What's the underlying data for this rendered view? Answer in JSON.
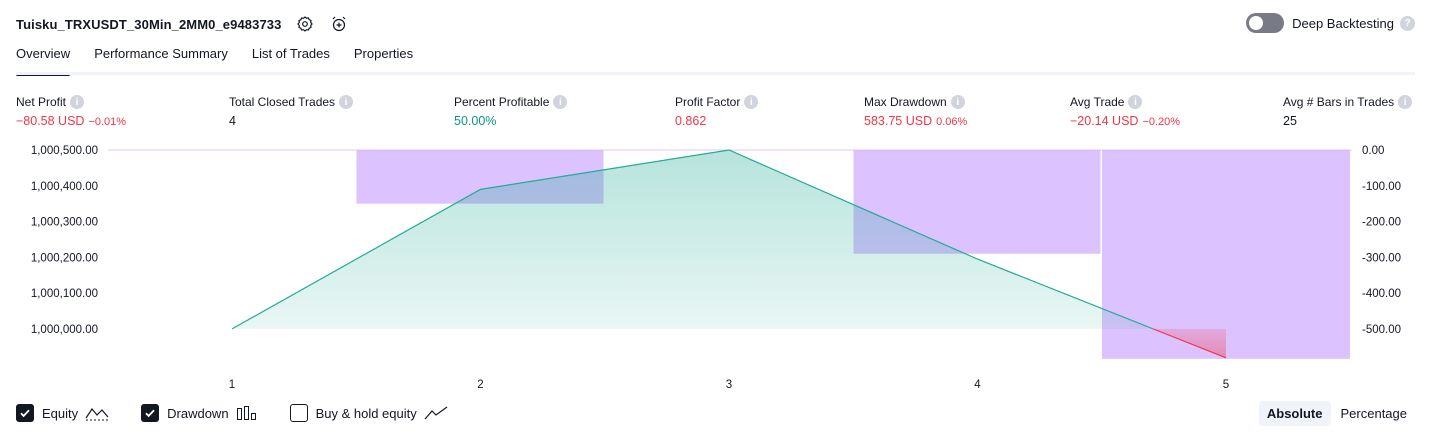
{
  "header": {
    "title": "Tuisku_TRXUSDT_30Min_2MM0_e9483733",
    "deep_backtesting_label": "Deep Backtesting",
    "deep_backtesting_on": false
  },
  "tabs": [
    {
      "label": "Overview",
      "active": true
    },
    {
      "label": "Performance Summary",
      "active": false
    },
    {
      "label": "List of Trades",
      "active": false
    },
    {
      "label": "Properties",
      "active": false
    }
  ],
  "stats": [
    {
      "label": "Net Profit",
      "value": "−80.58 USD",
      "pct": "−0.01%",
      "tone": "neg"
    },
    {
      "label": "Total Closed Trades",
      "value": "4",
      "pct": "",
      "tone": "neu"
    },
    {
      "label": "Percent Profitable",
      "value": "50.00%",
      "pct": "",
      "tone": "pos"
    },
    {
      "label": "Profit Factor",
      "value": "0.862",
      "pct": "",
      "tone": "neg"
    },
    {
      "label": "Max Drawdown",
      "value": "583.75 USD",
      "pct": "0.06%",
      "tone": "neg"
    },
    {
      "label": "Avg Trade",
      "value": "−20.14 USD",
      "pct": "−0.20%",
      "tone": "neg"
    },
    {
      "label": "Avg # Bars in Trades",
      "value": "25",
      "pct": "",
      "tone": "neu"
    }
  ],
  "chart_data": {
    "type": "area",
    "x": [
      1,
      2,
      3,
      4,
      5
    ],
    "equity": [
      1000000,
      1000390,
      1000500,
      1000195,
      999919
    ],
    "drawdown_bars": [
      {
        "x": 2,
        "value": -150
      },
      {
        "x": 4,
        "value": -290
      },
      {
        "x": 5,
        "value": -583.75
      }
    ],
    "left_axis": {
      "ticks": [
        "1,000,500.00",
        "1,000,400.00",
        "1,000,300.00",
        "1,000,200.00",
        "1,000,100.00",
        "1,000,000.00"
      ],
      "range": [
        999913,
        1000500
      ]
    },
    "right_axis": {
      "ticks": [
        "0.00",
        "-100.00",
        "-200.00",
        "-300.00",
        "-400.00",
        "-500.00"
      ],
      "range": [
        -587,
        0
      ]
    },
    "x_ticks": [
      "1",
      "2",
      "3",
      "4",
      "5"
    ],
    "colors": {
      "equity_line": "#22ab94",
      "equity_fill": "#22ab94",
      "loss_line": "#f23645",
      "drawdown": "#c59bff",
      "top_line": "#e9c6ee"
    }
  },
  "legend": [
    {
      "label": "Equity",
      "checked": true,
      "icon": "equity-line-icon"
    },
    {
      "label": "Drawdown",
      "checked": true,
      "icon": "drawdown-bars-icon"
    },
    {
      "label": "Buy & hold equity",
      "checked": false,
      "icon": "buy-hold-line-icon"
    }
  ],
  "mode": {
    "absolute_label": "Absolute",
    "percentage_label": "Percentage",
    "selected": "Absolute"
  }
}
